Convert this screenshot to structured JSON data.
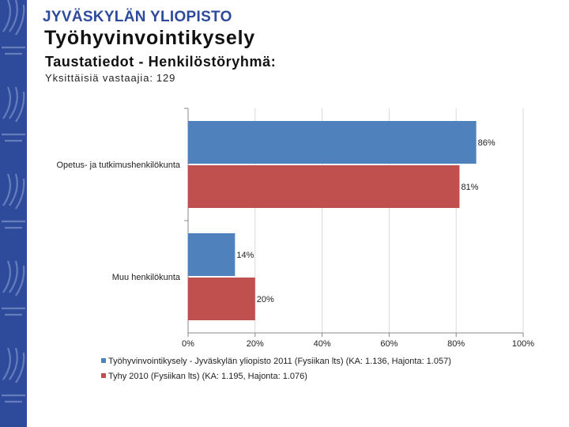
{
  "header": {
    "logo_text": "JYVÄSKYLÄN YLIOPISTO",
    "title": "Työhyvinvointikysely",
    "subtitle": "Taustatiedot - Henkilöstöryhmä:",
    "respondents_label": "Yksittäisiä vastaajia:",
    "respondents_value": "129"
  },
  "colors": {
    "brand": "#2d4b9a",
    "series_blue": "#4f81bd",
    "series_red": "#c0504d"
  },
  "chart_data": {
    "type": "bar",
    "orientation": "horizontal",
    "categories": [
      "Opetus- ja tutkimushenkilökunta",
      "Muu henkilökunta"
    ],
    "series": [
      {
        "name": "Työhyvinvointikysely - Jyväskylän yliopisto 2011 (Fysiikan lts) (KA: 1.136, Hajonta: 1.057)",
        "values": [
          86,
          14
        ],
        "labels": [
          "86%",
          "14%"
        ],
        "color": "#4f81bd"
      },
      {
        "name": "Tyhy 2010 (Fysiikan lts) (KA: 1.195, Hajonta: 1.076)",
        "values": [
          81,
          20
        ],
        "labels": [
          "81%",
          "20%"
        ],
        "color": "#c0504d"
      }
    ],
    "xlim": [
      0,
      100
    ],
    "xticks": [
      "0%",
      "20%",
      "40%",
      "60%",
      "80%",
      "100%"
    ],
    "grid": true,
    "legend_position": "bottom"
  }
}
